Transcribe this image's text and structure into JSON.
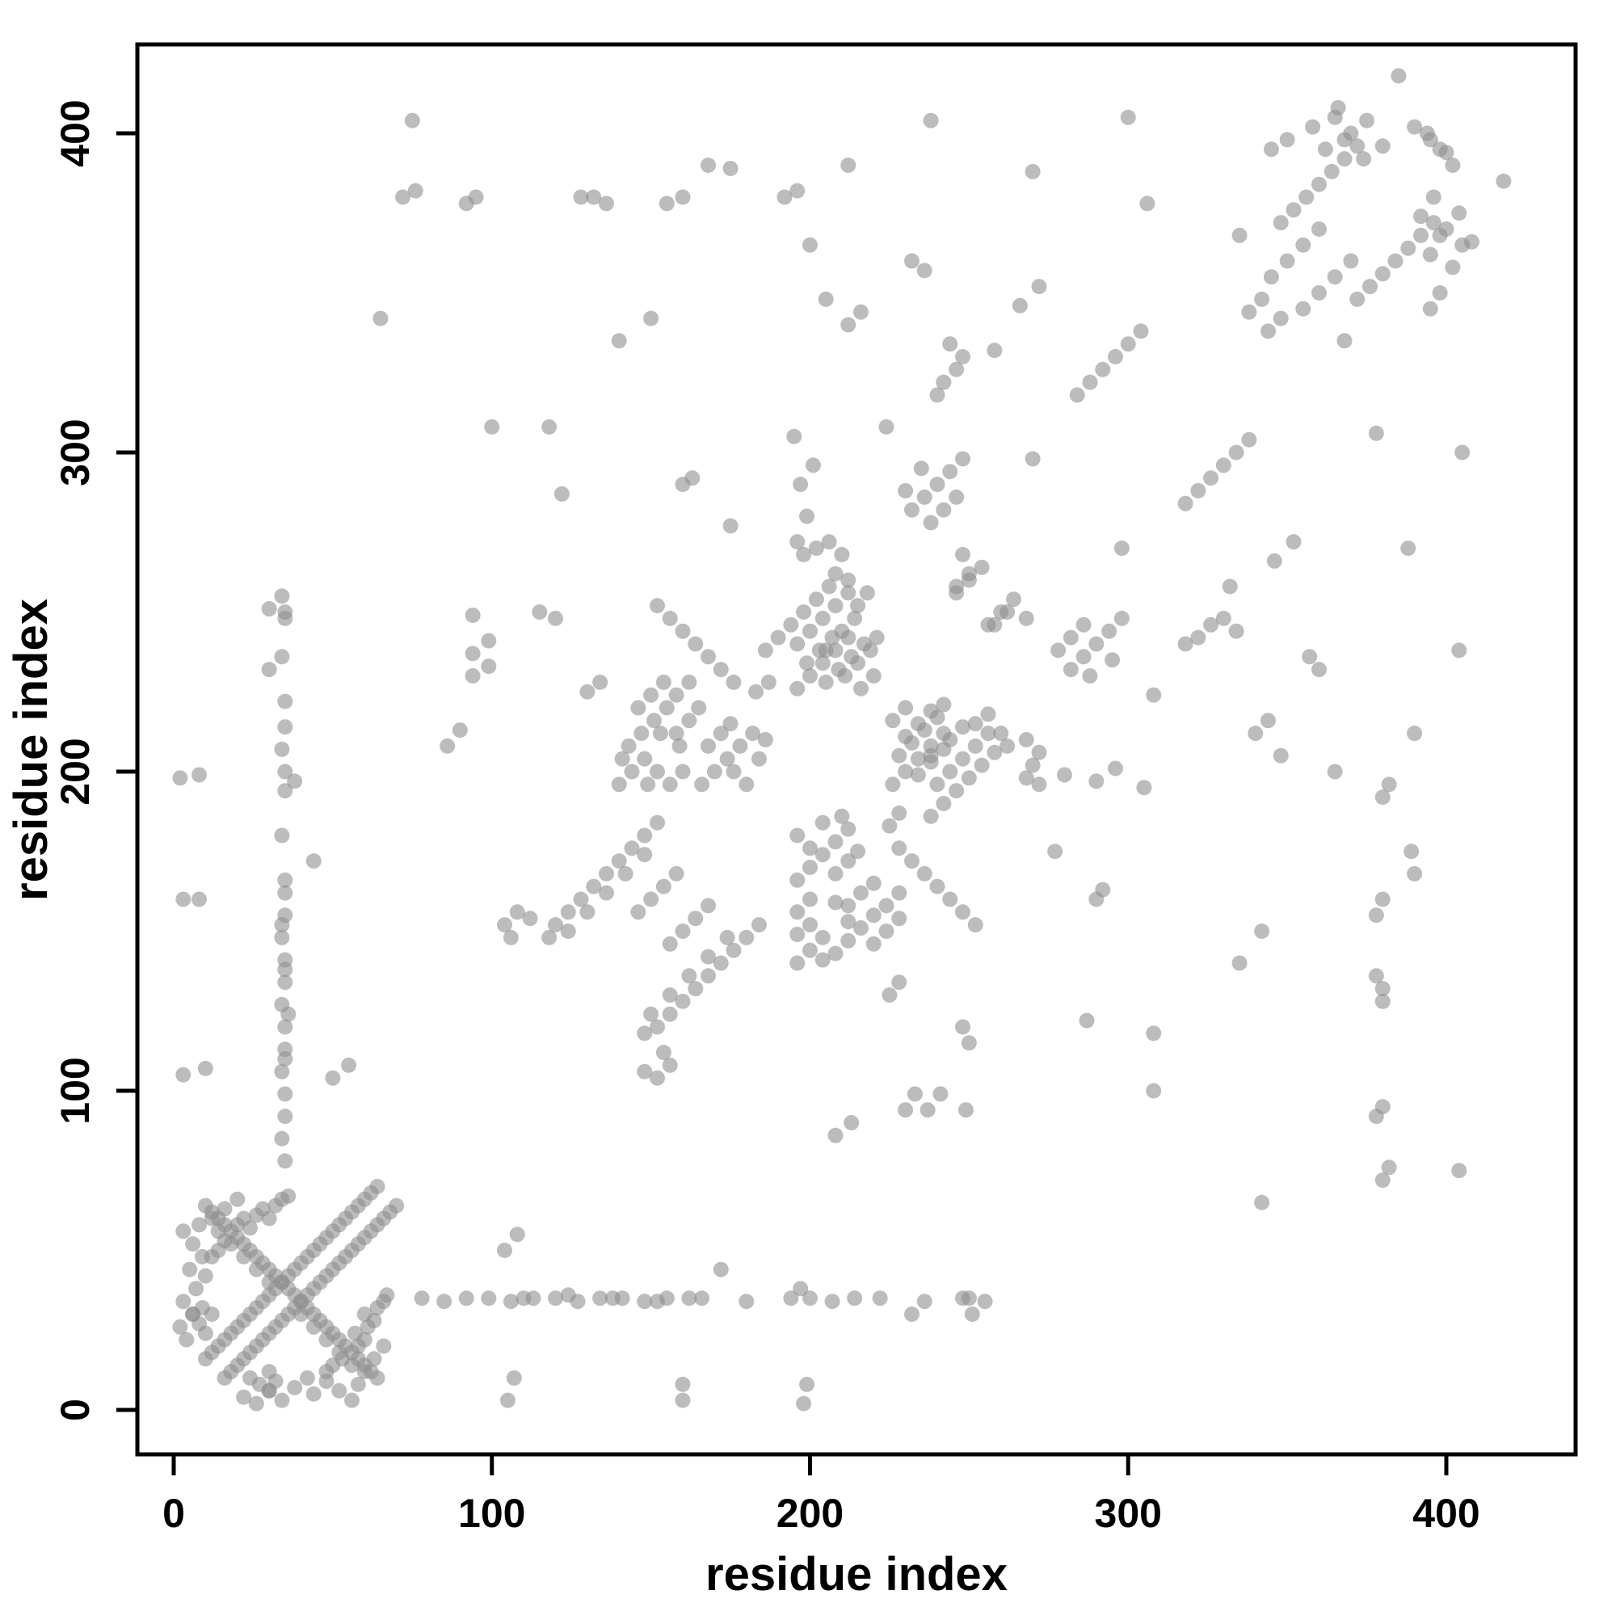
{
  "figure": {
    "background": "#ffffff",
    "axis_color": "#000000"
  },
  "chart_data": {
    "type": "scatter",
    "title": "",
    "xlabel": "residue index",
    "ylabel": "residue index",
    "xticks": [
      0,
      100,
      200,
      300,
      400
    ],
    "yticks": [
      0,
      100,
      200,
      300,
      400
    ],
    "xlim": [
      -12,
      442
    ],
    "ylim": [
      -12,
      442
    ],
    "grid": false,
    "legend": "none",
    "symmetric": true,
    "marker": {
      "color": "#8f8f8f",
      "opacity": 0.6,
      "radius_px": 9.5
    },
    "points": [
      [
        10,
        16
      ],
      [
        12,
        18
      ],
      [
        14,
        20
      ],
      [
        16,
        22
      ],
      [
        18,
        24
      ],
      [
        20,
        26
      ],
      [
        22,
        28
      ],
      [
        24,
        30
      ],
      [
        26,
        32
      ],
      [
        28,
        34
      ],
      [
        30,
        36
      ],
      [
        32,
        38
      ],
      [
        34,
        40
      ],
      [
        36,
        42
      ],
      [
        38,
        44
      ],
      [
        40,
        46
      ],
      [
        42,
        48
      ],
      [
        44,
        50
      ],
      [
        46,
        52
      ],
      [
        48,
        54
      ],
      [
        50,
        56
      ],
      [
        52,
        58
      ],
      [
        54,
        60
      ],
      [
        56,
        62
      ],
      [
        58,
        64
      ],
      [
        60,
        66
      ],
      [
        62,
        68
      ],
      [
        64,
        70
      ],
      [
        10,
        64
      ],
      [
        12,
        62
      ],
      [
        14,
        60
      ],
      [
        16,
        58
      ],
      [
        18,
        56
      ],
      [
        20,
        54
      ],
      [
        22,
        52
      ],
      [
        24,
        50
      ],
      [
        26,
        48
      ],
      [
        28,
        46
      ],
      [
        30,
        44
      ],
      [
        32,
        42
      ],
      [
        34,
        40
      ],
      [
        36,
        38
      ],
      [
        14,
        56
      ],
      [
        18,
        52
      ],
      [
        22,
        48
      ],
      [
        26,
        44
      ],
      [
        30,
        40
      ],
      [
        14,
        50
      ],
      [
        16,
        53
      ],
      [
        20,
        58
      ],
      [
        22,
        60
      ],
      [
        24,
        57
      ],
      [
        26,
        61
      ],
      [
        28,
        63
      ],
      [
        30,
        60
      ],
      [
        32,
        64
      ],
      [
        34,
        66
      ],
      [
        36,
        67
      ],
      [
        12,
        48
      ],
      [
        6,
        30
      ],
      [
        8,
        27
      ],
      [
        10,
        24
      ],
      [
        9,
        32
      ],
      [
        12,
        30
      ],
      [
        22,
        4
      ],
      [
        26,
        2
      ],
      [
        30,
        6
      ],
      [
        34,
        3
      ],
      [
        38,
        7
      ],
      [
        44,
        5
      ],
      [
        48,
        9
      ],
      [
        52,
        6
      ],
      [
        56,
        3
      ],
      [
        60,
        12
      ],
      [
        63,
        16
      ],
      [
        66,
        20
      ],
      [
        58,
        8
      ],
      [
        42,
        10
      ],
      [
        35,
        78
      ],
      [
        34,
        85
      ],
      [
        35,
        92
      ],
      [
        35,
        99
      ],
      [
        34,
        106
      ],
      [
        35,
        113
      ],
      [
        35,
        120
      ],
      [
        34,
        127
      ],
      [
        35,
        134
      ],
      [
        35,
        141
      ],
      [
        34,
        148
      ],
      [
        35,
        155
      ],
      [
        35,
        162
      ],
      [
        35,
        200
      ],
      [
        34,
        207
      ],
      [
        35,
        214
      ],
      [
        35,
        248
      ],
      [
        34,
        255
      ],
      [
        110,
        35
      ],
      [
        124,
        36
      ],
      [
        138,
        35
      ],
      [
        152,
        34
      ],
      [
        166,
        35
      ],
      [
        180,
        34
      ],
      [
        194,
        35
      ],
      [
        222,
        35
      ],
      [
        236,
        34
      ],
      [
        250,
        35
      ],
      [
        8,
        199
      ],
      [
        8,
        160
      ],
      [
        10,
        107
      ],
      [
        30,
        251
      ],
      [
        30,
        232
      ],
      [
        38,
        197
      ],
      [
        44,
        172
      ],
      [
        50,
        104
      ],
      [
        55,
        108
      ],
      [
        65,
        342
      ],
      [
        72,
        380
      ],
      [
        76,
        382
      ],
      [
        75,
        404
      ],
      [
        92,
        378
      ],
      [
        95,
        380
      ],
      [
        100,
        308
      ],
      [
        86,
        208
      ],
      [
        90,
        213
      ],
      [
        94,
        230
      ],
      [
        94,
        237
      ],
      [
        99,
        233
      ],
      [
        99,
        241
      ],
      [
        94,
        249
      ],
      [
        120,
        152
      ],
      [
        124,
        156
      ],
      [
        128,
        160
      ],
      [
        132,
        164
      ],
      [
        136,
        168
      ],
      [
        140,
        172
      ],
      [
        144,
        176
      ],
      [
        148,
        180
      ],
      [
        152,
        184
      ],
      [
        124,
        150
      ],
      [
        130,
        156
      ],
      [
        136,
        162
      ],
      [
        142,
        168
      ],
      [
        148,
        174
      ],
      [
        118,
        148
      ],
      [
        140,
        196
      ],
      [
        144,
        200
      ],
      [
        148,
        204
      ],
      [
        143,
        208
      ],
      [
        147,
        212
      ],
      [
        151,
        216
      ],
      [
        155,
        220
      ],
      [
        150,
        224
      ],
      [
        154,
        228
      ],
      [
        158,
        212
      ],
      [
        162,
        216
      ],
      [
        160,
        200
      ],
      [
        156,
        196
      ],
      [
        152,
        200
      ],
      [
        146,
        220
      ],
      [
        158,
        224
      ],
      [
        162,
        228
      ],
      [
        141,
        204
      ],
      [
        159,
        208
      ],
      [
        165,
        220
      ],
      [
        149,
        196
      ],
      [
        153,
        212
      ],
      [
        166,
        196
      ],
      [
        170,
        200
      ],
      [
        174,
        204
      ],
      [
        178,
        208
      ],
      [
        182,
        212
      ],
      [
        168,
        208
      ],
      [
        172,
        212
      ],
      [
        176,
        200
      ],
      [
        180,
        196
      ],
      [
        184,
        204
      ],
      [
        175,
        215
      ],
      [
        186,
        210
      ],
      [
        186,
        238
      ],
      [
        190,
        242
      ],
      [
        194,
        246
      ],
      [
        198,
        250
      ],
      [
        202,
        254
      ],
      [
        206,
        258
      ],
      [
        196,
        240
      ],
      [
        200,
        244
      ],
      [
        204,
        248
      ],
      [
        208,
        252
      ],
      [
        212,
        256
      ],
      [
        210,
        244
      ],
      [
        214,
        248
      ],
      [
        205,
        238
      ],
      [
        215,
        252
      ],
      [
        218,
        256
      ],
      [
        212,
        260
      ],
      [
        208,
        262
      ],
      [
        196,
        226
      ],
      [
        200,
        230
      ],
      [
        204,
        234
      ],
      [
        208,
        238
      ],
      [
        212,
        242
      ],
      [
        205,
        228
      ],
      [
        209,
        232
      ],
      [
        213,
        236
      ],
      [
        217,
        240
      ],
      [
        199,
        234
      ],
      [
        203,
        238
      ],
      [
        207,
        242
      ],
      [
        211,
        230
      ],
      [
        215,
        234
      ],
      [
        219,
        238
      ],
      [
        221,
        242
      ],
      [
        216,
        226
      ],
      [
        220,
        230
      ],
      [
        232,
        282
      ],
      [
        236,
        286
      ],
      [
        240,
        290
      ],
      [
        244,
        294
      ],
      [
        238,
        278
      ],
      [
        242,
        282
      ],
      [
        246,
        286
      ],
      [
        235,
        295
      ],
      [
        230,
        288
      ],
      [
        248,
        298
      ],
      [
        152,
        252
      ],
      [
        156,
        248
      ],
      [
        160,
        244
      ],
      [
        164,
        240
      ],
      [
        168,
        236
      ],
      [
        172,
        232
      ],
      [
        176,
        228
      ],
      [
        128,
        380
      ],
      [
        132,
        380
      ],
      [
        136,
        378
      ],
      [
        155,
        378
      ],
      [
        160,
        380
      ],
      [
        168,
        390
      ],
      [
        175,
        389
      ],
      [
        150,
        342
      ],
      [
        140,
        335
      ],
      [
        118,
        308
      ],
      [
        122,
        287
      ],
      [
        160,
        290
      ],
      [
        163,
        292
      ],
      [
        175,
        277
      ],
      [
        198,
        268
      ],
      [
        202,
        270
      ],
      [
        206,
        272
      ],
      [
        210,
        268
      ],
      [
        242,
        322
      ],
      [
        246,
        326
      ],
      [
        244,
        334
      ],
      [
        248,
        330
      ],
      [
        240,
        318
      ],
      [
        284,
        318
      ],
      [
        288,
        322
      ],
      [
        292,
        326
      ],
      [
        296,
        330
      ],
      [
        300,
        334
      ],
      [
        304,
        338
      ],
      [
        345,
        355
      ],
      [
        350,
        360
      ],
      [
        355,
        365
      ],
      [
        360,
        370
      ],
      [
        348,
        372
      ],
      [
        352,
        376
      ],
      [
        356,
        380
      ],
      [
        360,
        384
      ],
      [
        364,
        388
      ],
      [
        368,
        392
      ],
      [
        372,
        396
      ],
      [
        345,
        395
      ],
      [
        350,
        398
      ],
      [
        358,
        402
      ],
      [
        365,
        405
      ],
      [
        370,
        400
      ],
      [
        375,
        404
      ],
      [
        362,
        395
      ],
      [
        368,
        398
      ],
      [
        374,
        392
      ],
      [
        380,
        396
      ],
      [
        366,
        408
      ],
      [
        385,
        418
      ],
      [
        390,
        402
      ],
      [
        395,
        398
      ],
      [
        400,
        394
      ],
      [
        342,
        348
      ],
      [
        338,
        344
      ],
      [
        335,
        368
      ],
      [
        256,
        246
      ],
      [
        260,
        250
      ],
      [
        264,
        254
      ],
      [
        268,
        248
      ],
      [
        196,
        272
      ],
      [
        199,
        280
      ],
      [
        197,
        290
      ],
      [
        201,
        296
      ],
      [
        195,
        305
      ],
      [
        104,
        152
      ],
      [
        108,
        156
      ],
      [
        112,
        154
      ],
      [
        106,
        148
      ],
      [
        130,
        225
      ],
      [
        134,
        228
      ],
      [
        115,
        250
      ],
      [
        120,
        248
      ],
      [
        212,
        340
      ],
      [
        216,
        344
      ],
      [
        232,
        360
      ],
      [
        236,
        357
      ],
      [
        205,
        348
      ],
      [
        192,
        380
      ],
      [
        196,
        382
      ],
      [
        212,
        390
      ],
      [
        266,
        346
      ],
      [
        272,
        352
      ],
      [
        306,
        378
      ],
      [
        258,
        332
      ],
      [
        200,
        365
      ],
      [
        150,
        160
      ],
      [
        154,
        164
      ],
      [
        158,
        168
      ],
      [
        146,
        156
      ],
      [
        270,
        298
      ],
      [
        224,
        308
      ],
      [
        246,
        258
      ],
      [
        250,
        262
      ],
      [
        183,
        225
      ],
      [
        187,
        228
      ],
      [
        160,
        3
      ],
      [
        198,
        2
      ],
      [
        105,
        3
      ],
      [
        300,
        405
      ],
      [
        270,
        388
      ],
      [
        238,
        404
      ]
    ]
  }
}
